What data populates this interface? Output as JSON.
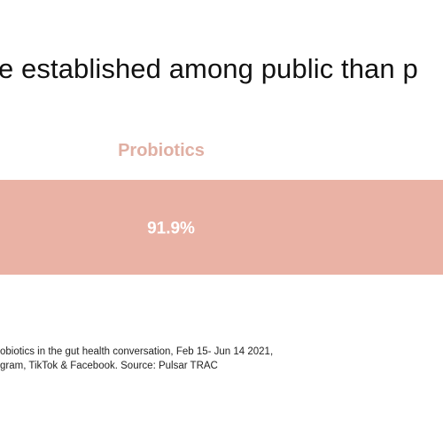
{
  "header": {
    "title": "e established among public than p"
  },
  "chart_data": {
    "type": "bar",
    "orientation": "horizontal",
    "categories": [
      "Probiotics"
    ],
    "values": [
      91.9
    ],
    "value_labels": [
      "91.9%"
    ],
    "unit": "%",
    "xlim": [
      0,
      100
    ],
    "grid": false,
    "legend": "none",
    "colors": {
      "bar": "#EAB2A5",
      "category_label": "#E0AFA3",
      "value_label": "#ffffff"
    }
  },
  "footnote": {
    "line1": "obiotics in the gut health conversation, Feb 15- Jun 14 2021,",
    "line2": "gram, TikTok & Facebook. Source: Pulsar TRAC"
  }
}
